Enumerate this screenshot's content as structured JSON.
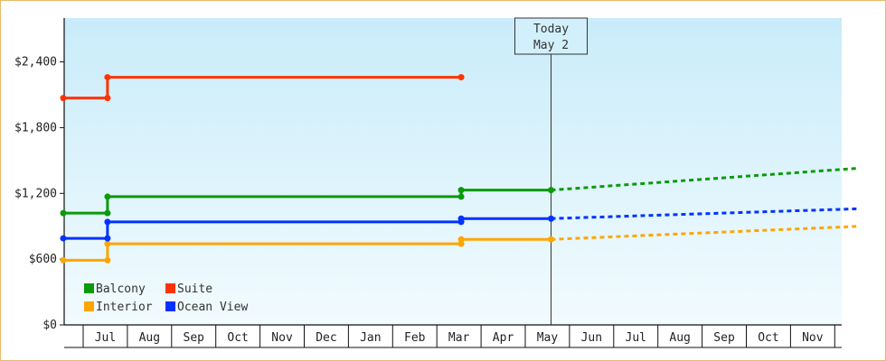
{
  "chart_data": {
    "type": "line",
    "title": "",
    "xlabel": "",
    "ylabel": "",
    "ylim": [
      0,
      2800
    ],
    "y_ticks": [
      0,
      600,
      1200,
      1800,
      2400
    ],
    "y_tick_labels": [
      "$0",
      "$600",
      "$1,200",
      "$1,800",
      "$2,400"
    ],
    "x_tick_labels": [
      "Jul",
      "Aug",
      "Sep",
      "Oct",
      "Nov",
      "Dec",
      "Jan",
      "Feb",
      "Mar",
      "Apr",
      "May",
      "Jun",
      "Jul",
      "Aug",
      "Sep",
      "Oct",
      "Nov"
    ],
    "grid": false,
    "legend_position": "bottom-left",
    "today_marker": {
      "line1": "Today",
      "line2": "May 2"
    },
    "series": [
      {
        "name": "Balcony",
        "color": "#0a9a0a",
        "points": [
          {
            "x": "Jun 1",
            "y": 1020
          },
          {
            "x": "Jul 1",
            "y": 1020
          },
          {
            "x": "Jul 1",
            "y": 1170
          },
          {
            "x": "Mar 1",
            "y": 1170
          },
          {
            "x": "Mar 1",
            "y": 1230
          },
          {
            "x": "May 2",
            "y": 1230
          }
        ],
        "forecast": [
          {
            "x": "May 2",
            "y": 1230
          },
          {
            "x": "Dec 1",
            "y": 1430
          }
        ]
      },
      {
        "name": "Suite",
        "color": "#ff3300",
        "points": [
          {
            "x": "Jun 1",
            "y": 2070
          },
          {
            "x": "Jul 1",
            "y": 2070
          },
          {
            "x": "Jul 1",
            "y": 2260
          },
          {
            "x": "Mar 1",
            "y": 2260
          }
        ],
        "forecast": []
      },
      {
        "name": "Interior",
        "color": "#ffa500",
        "points": [
          {
            "x": "Jun 1",
            "y": 590
          },
          {
            "x": "Jul 1",
            "y": 590
          },
          {
            "x": "Jul 1",
            "y": 740
          },
          {
            "x": "Mar 1",
            "y": 740
          },
          {
            "x": "Mar 1",
            "y": 780
          },
          {
            "x": "May 2",
            "y": 780
          }
        ],
        "forecast": [
          {
            "x": "May 2",
            "y": 780
          },
          {
            "x": "Dec 1",
            "y": 900
          }
        ]
      },
      {
        "name": "Ocean View",
        "color": "#0033ff",
        "points": [
          {
            "x": "Jun 1",
            "y": 790
          },
          {
            "x": "Jul 1",
            "y": 790
          },
          {
            "x": "Jul 1",
            "y": 940
          },
          {
            "x": "Mar 1",
            "y": 940
          },
          {
            "x": "Mar 1",
            "y": 970
          },
          {
            "x": "May 2",
            "y": 970
          }
        ],
        "forecast": [
          {
            "x": "May 2",
            "y": 970
          },
          {
            "x": "Dec 1",
            "y": 1060
          }
        ]
      }
    ]
  }
}
